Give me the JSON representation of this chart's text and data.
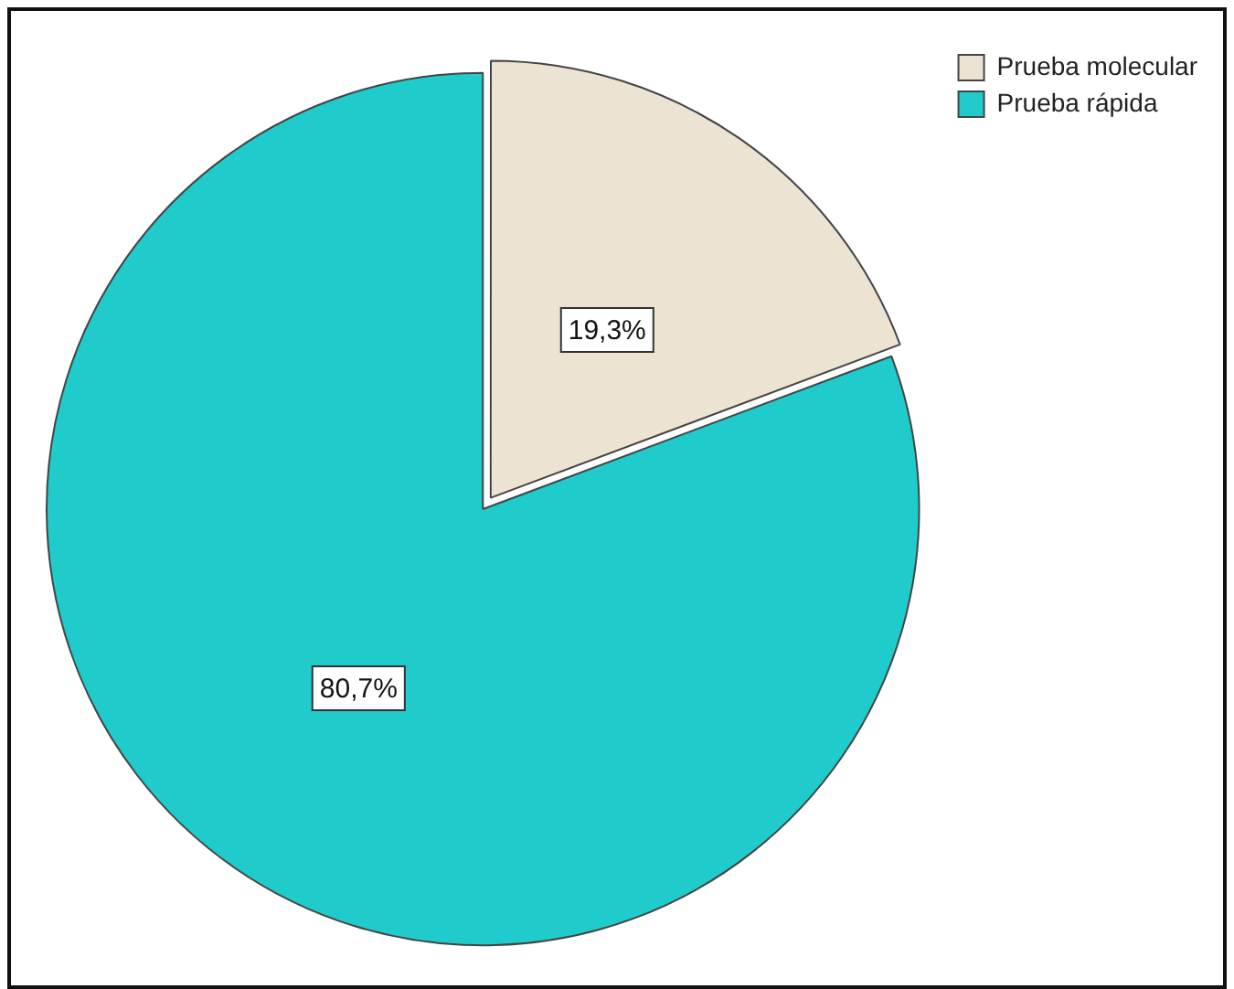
{
  "chart_data": {
    "type": "pie",
    "categories": [
      "Prueba molecular",
      "Prueba rápida"
    ],
    "values": [
      19.3,
      80.7
    ],
    "colors": [
      "#ede3d3",
      "#1fcbcb"
    ],
    "value_labels": [
      "19,3%",
      "80,7%"
    ],
    "legend": "top right"
  }
}
